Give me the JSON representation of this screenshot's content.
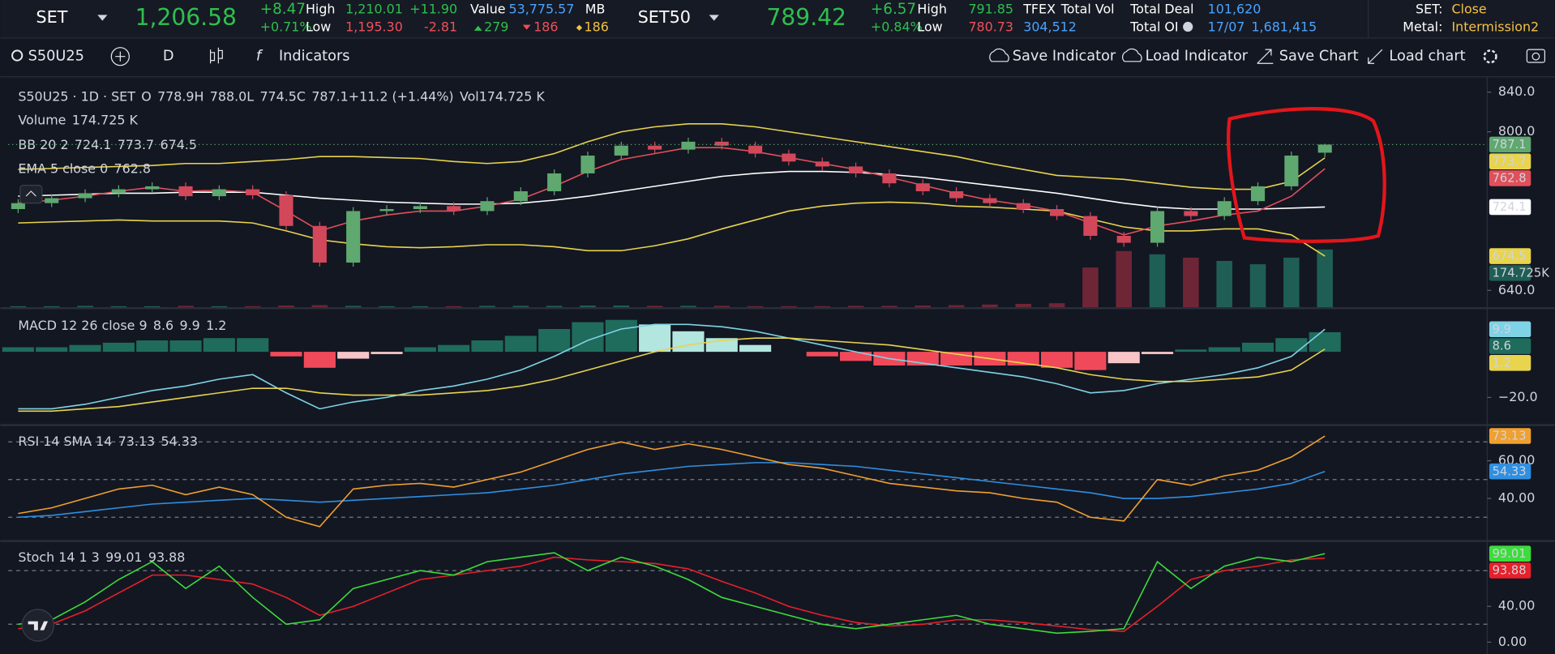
{
  "header": {
    "set": {
      "name": "SET",
      "last": "1,206.58",
      "change": "+8.47",
      "pct": "+0.71%",
      "high_label": "High",
      "low_label": "Low",
      "high": "1,210.01",
      "low": "1,195.30",
      "high_change": "+11.90",
      "low_change": "-2.81",
      "value_label": "Value",
      "value": "53,775.57",
      "unit": "MB",
      "up": "279",
      "down": "186",
      "flat": "186"
    },
    "set50": {
      "name": "SET50",
      "last": "789.42",
      "change": "+6.57",
      "pct": "+0.84%",
      "high_label": "High",
      "low_label": "Low",
      "high": "791.85",
      "low": "780.73"
    },
    "tfex": {
      "label": "TFEX",
      "total_vol_label": "Total Vol",
      "total_vol": "304,512",
      "total_deal_label": "Total Deal",
      "total_deal": "101,620",
      "total_oi_label": "Total OI",
      "date": "17/07",
      "total_oi": "1,681,415"
    },
    "status": {
      "set_label": "SET:",
      "set": "Close",
      "metal_label": "Metal:",
      "metal": "Intermission2"
    }
  },
  "toolbar": {
    "symbol": "S50U25",
    "interval": "D",
    "indicators": "Indicators",
    "save_indicator": "Save Indicator",
    "load_indicator": "Load Indicator",
    "save_chart": "Save Chart",
    "load_chart": "Load chart"
  },
  "chart_data": [
    {
      "type": "candlestick",
      "title": "S50U25 · 1D · SET",
      "ohlc_legend": [
        {
          "prefix": "O",
          "text": "778.9"
        },
        {
          "prefix": "H",
          "text": "788.0"
        },
        {
          "prefix": "L",
          "text": "774.5"
        },
        {
          "prefix": "C",
          "text": "787.1"
        }
      ],
      "change": "+11.2 (+1.44%)",
      "vol_prefix": "Vol",
      "vol_text": "174.725 K",
      "up_color": "#5fa86f",
      "down_color": "#d2485a",
      "open": [
        722,
        728,
        733,
        738,
        742,
        745,
        735,
        742,
        736,
        705,
        668,
        720,
        722,
        725,
        720,
        730,
        740,
        758,
        776,
        786,
        782,
        790,
        786,
        778,
        770,
        765,
        758,
        748,
        740,
        733,
        728,
        722,
        715,
        695,
        688,
        720,
        715,
        730,
        745,
        778.9
      ],
      "high": [
        732,
        737,
        742,
        746,
        749,
        749,
        746,
        746,
        740,
        709,
        724,
        726,
        729,
        729,
        734,
        744,
        762,
        780,
        790,
        790,
        794,
        794,
        790,
        782,
        774,
        769,
        762,
        752,
        744,
        737,
        732,
        726,
        719,
        699,
        724,
        724,
        734,
        749,
        780,
        788
      ],
      "low": [
        718,
        724,
        729,
        734,
        738,
        731,
        731,
        732,
        701,
        664,
        664,
        716,
        718,
        716,
        716,
        726,
        736,
        754,
        772,
        778,
        778,
        782,
        774,
        766,
        761,
        754,
        744,
        736,
        729,
        724,
        718,
        711,
        691,
        684,
        684,
        711,
        711,
        726,
        741,
        774.5
      ],
      "close": [
        728,
        733,
        738,
        742,
        745,
        735,
        742,
        736,
        705,
        668,
        720,
        722,
        725,
        720,
        730,
        740,
        758,
        776,
        786,
        782,
        790,
        786,
        778,
        770,
        765,
        758,
        748,
        740,
        733,
        728,
        722,
        715,
        695,
        688,
        720,
        715,
        730,
        745,
        776,
        787.1
      ],
      "volume": {
        "name": "Volume",
        "color": "#1f5e55",
        "down_color": "#6e2637",
        "values": [
          3,
          3,
          4,
          3,
          3,
          4,
          3,
          3,
          5,
          6,
          4,
          3,
          3,
          3,
          4,
          4,
          4,
          5,
          5,
          4,
          4,
          4,
          3,
          3,
          3,
          4,
          4,
          5,
          6,
          8,
          10,
          12,
          120,
          170,
          160,
          150,
          140,
          130,
          150,
          174.725
        ],
        "ylim": [
          0,
          180
        ],
        "value_label": "174.725 K",
        "badge_label": "174.725K"
      },
      "bb": {
        "name": "BB 20 2",
        "basis_color": "#ffffff",
        "band_color": "#e8d44d",
        "basis": [
          735,
          736,
          737,
          738,
          738,
          739,
          739,
          739,
          736,
          733,
          731,
          729,
          728,
          727,
          727,
          728,
          731,
          735,
          740,
          745,
          750,
          755,
          758,
          760,
          760,
          759,
          757,
          754,
          750,
          746,
          742,
          738,
          733,
          728,
          724,
          722,
          722,
          722,
          723,
          724.1
        ],
        "upper": [
          762,
          763,
          764,
          765,
          766,
          768,
          768,
          770,
          772,
          775,
          775,
          774,
          773,
          770,
          768,
          770,
          778,
          790,
          800,
          805,
          808,
          808,
          805,
          800,
          795,
          790,
          785,
          780,
          775,
          768,
          762,
          756,
          754,
          752,
          748,
          744,
          742,
          742,
          750,
          773.7
        ],
        "lower": [
          708,
          709,
          710,
          711,
          710,
          710,
          710,
          708,
          700,
          691,
          687,
          684,
          683,
          684,
          686,
          686,
          684,
          680,
          680,
          685,
          692,
          702,
          711,
          720,
          725,
          728,
          729,
          728,
          725,
          724,
          722,
          720,
          712,
          704,
          700,
          700,
          702,
          702,
          696,
          674.5
        ]
      },
      "ema": {
        "name": "EMA 5 close 0",
        "color": "#e0505a",
        "values": [
          728,
          731,
          735,
          740,
          744,
          740,
          741,
          739,
          720,
          700,
          710,
          716,
          720,
          720,
          725,
          732,
          745,
          760,
          772,
          778,
          784,
          784,
          780,
          774,
          768,
          762,
          754,
          746,
          738,
          731,
          726,
          720,
          708,
          696,
          705,
          710,
          716,
          720,
          735,
          762.8
        ]
      },
      "ylim": [
        623,
        853
      ],
      "yticks": [
        {
          "value": 640,
          "label": "640.0"
        },
        {
          "value": 800,
          "label": "800.0"
        },
        {
          "value": 840,
          "label": "840.0"
        }
      ]
    },
    {
      "type": "macd",
      "title": "MACD 12 26 close 9",
      "histogram": {
        "color": "#1f6b5c",
        "values": [
          2,
          2,
          3,
          4,
          5,
          5,
          6,
          6,
          -2,
          -7,
          -3,
          -1,
          2,
          3,
          5,
          7,
          10,
          13,
          14,
          12,
          9,
          6,
          3,
          0,
          -2,
          -4,
          -6,
          -6,
          -6,
          -6,
          -6,
          -7,
          -8,
          -5,
          -1,
          1,
          2,
          4,
          6,
          8.6
        ]
      },
      "macd": {
        "color": "#7fd3e6",
        "values": [
          -25,
          -25,
          -23,
          -20,
          -17,
          -15,
          -12,
          -10,
          -18,
          -25,
          -22,
          -20,
          -17,
          -15,
          -12,
          -8,
          -2,
          5,
          10,
          12,
          12,
          11,
          9,
          6,
          3,
          0,
          -3,
          -5,
          -7,
          -9,
          -11,
          -14,
          -18,
          -17,
          -14,
          -12,
          -10,
          -7,
          -2,
          9.9
        ]
      },
      "signal": {
        "color": "#e8d44d",
        "values": [
          -26,
          -26,
          -25,
          -24,
          -22,
          -20,
          -18,
          -16,
          -16,
          -18,
          -19,
          -19,
          -19,
          -18,
          -17,
          -15,
          -12,
          -8,
          -4,
          0,
          3,
          5,
          6,
          6,
          5,
          4,
          3,
          1,
          -1,
          -3,
          -5,
          -7,
          -10,
          -12,
          -13,
          -13,
          -12,
          -11,
          -8,
          1.2
        ]
      },
      "ylim": [
        -31.7,
        18.7
      ],
      "yticks": [
        {
          "value": -20,
          "label": "−20.0"
        }
      ]
    },
    {
      "type": "rsi",
      "title": "RSI 14 SMA 14",
      "rsi": {
        "color": "#f0a030",
        "values": [
          32,
          35,
          40,
          45,
          47,
          42,
          46,
          42,
          30,
          25,
          45,
          47,
          48,
          46,
          50,
          54,
          60,
          66,
          70,
          66,
          69,
          66,
          62,
          58,
          56,
          52,
          48,
          46,
          44,
          43,
          40,
          38,
          30,
          28,
          50,
          47,
          52,
          55,
          62,
          73.13
        ]
      },
      "sma": {
        "color": "#2f8fe0",
        "values": [
          30,
          31,
          33,
          35,
          37,
          38,
          39,
          40,
          39,
          38,
          39,
          40,
          41,
          42,
          43,
          45,
          47,
          50,
          53,
          55,
          57,
          58,
          59,
          59,
          58,
          57,
          55,
          53,
          51,
          49,
          47,
          45,
          43,
          40,
          40,
          41,
          43,
          45,
          48,
          54.33
        ]
      },
      "levels": [
        70,
        50,
        30
      ],
      "ylim": [
        17.9,
        78.4
      ],
      "yticks": [
        {
          "value": 40,
          "label": "40.00"
        },
        {
          "value": 60,
          "label": "60.00"
        }
      ]
    },
    {
      "type": "stoch",
      "title": "Stoch 14 1 3",
      "k": {
        "color": "#3cdc3c",
        "values": [
          20,
          25,
          45,
          70,
          90,
          60,
          85,
          50,
          20,
          25,
          60,
          70,
          80,
          75,
          90,
          95,
          100,
          80,
          95,
          85,
          70,
          50,
          40,
          30,
          20,
          15,
          20,
          25,
          30,
          20,
          15,
          10,
          12,
          15,
          90,
          60,
          85,
          95,
          90,
          99.01
        ]
      },
      "d": {
        "color": "#e8202a",
        "values": [
          15,
          20,
          35,
          55,
          75,
          75,
          70,
          65,
          50,
          30,
          40,
          55,
          70,
          75,
          80,
          85,
          95,
          92,
          90,
          88,
          82,
          68,
          55,
          40,
          30,
          22,
          18,
          20,
          25,
          25,
          22,
          18,
          14,
          12,
          40,
          70,
          80,
          85,
          92,
          93.88
        ]
      },
      "levels": [
        80,
        20
      ],
      "ylim": [
        -13.3,
        112
      ],
      "yticks": [
        {
          "value": 0,
          "label": "0.00"
        },
        {
          "value": 40,
          "label": "40.00"
        }
      ]
    }
  ]
}
